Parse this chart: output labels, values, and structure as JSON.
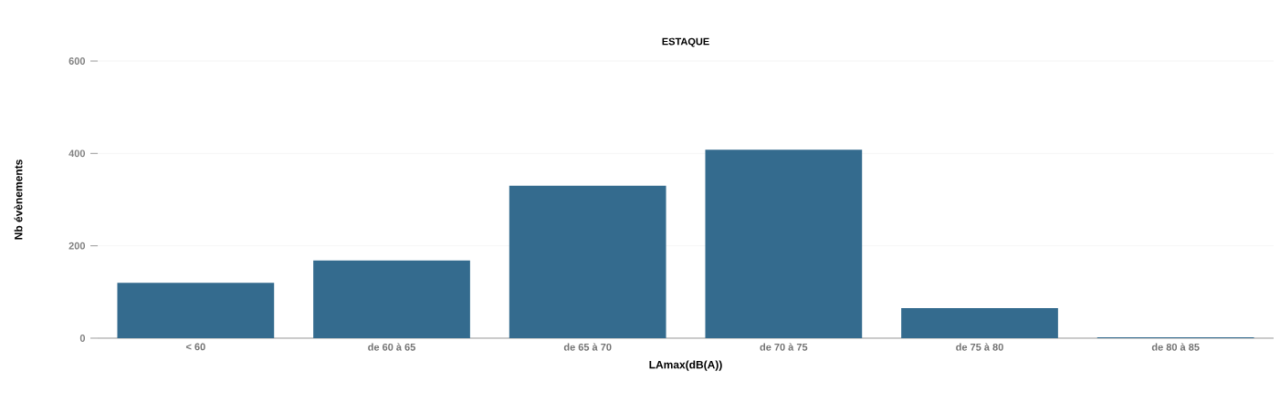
{
  "chart_data": {
    "type": "bar",
    "title": "ESTAQUE",
    "xlabel": "LAmax(dB(A))",
    "ylabel": "Nb évènements",
    "categories": [
      "< 60",
      "de 60 à 65",
      "de 65 à 70",
      "de 70 à 75",
      "de 75 à 80",
      "de 80 à 85"
    ],
    "values": [
      120,
      168,
      330,
      408,
      65,
      2
    ],
    "color": "#346b8e",
    "ylim": [
      0,
      600
    ],
    "yticks": [
      0,
      200,
      400,
      600
    ],
    "grid": "y"
  }
}
